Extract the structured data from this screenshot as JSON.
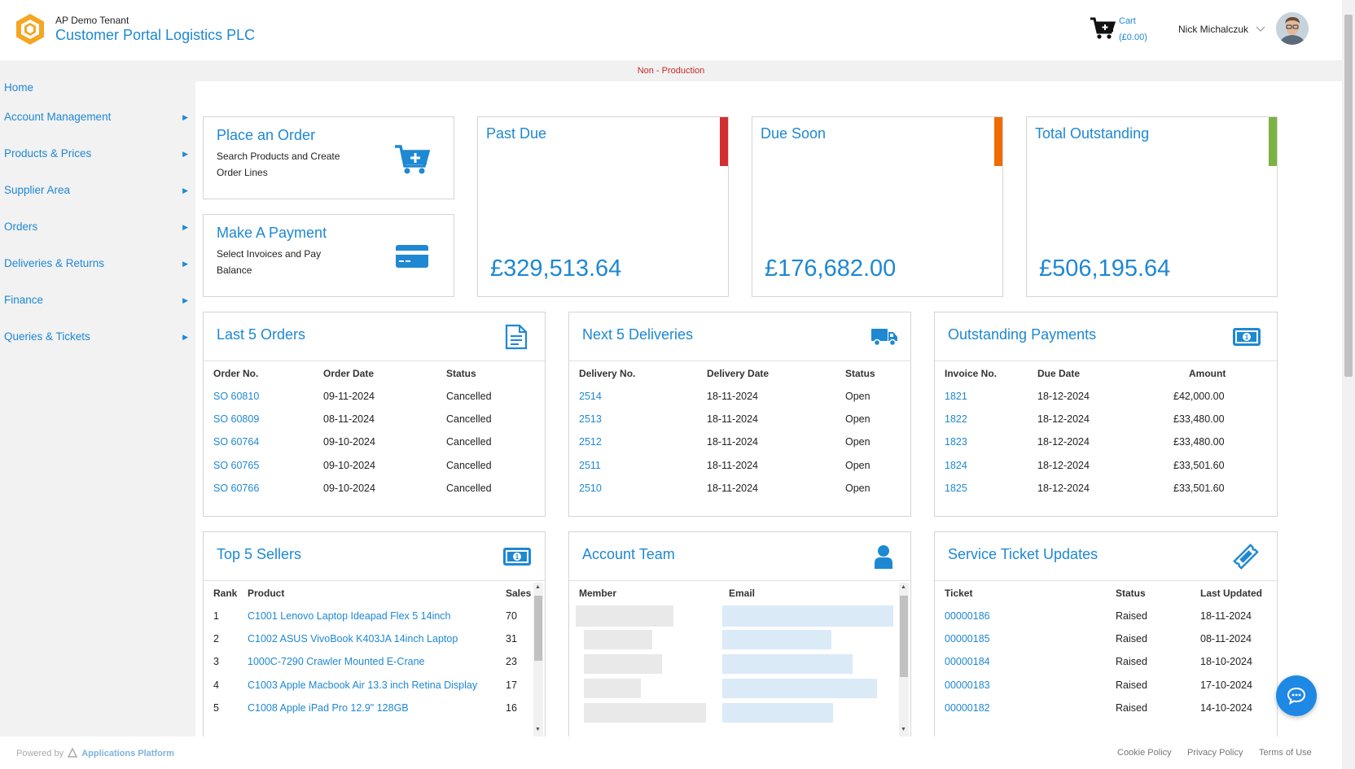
{
  "header": {
    "tenant": "AP Demo Tenant",
    "title": "Customer Portal Logistics PLC",
    "cart_label": "Cart",
    "cart_value": "(£0.00)",
    "user_name": "Nick Michalczuk"
  },
  "env": {
    "label": "Non - Production"
  },
  "sidebar": {
    "items": [
      {
        "label": "Home"
      },
      {
        "label": "Account Management"
      },
      {
        "label": "Products & Prices"
      },
      {
        "label": "Supplier Area"
      },
      {
        "label": "Orders"
      },
      {
        "label": "Deliveries & Returns"
      },
      {
        "label": "Finance"
      },
      {
        "label": "Queries & Tickets"
      }
    ]
  },
  "actions": {
    "order": {
      "title": "Place an Order",
      "subtitle": "Search Products and Create Order Lines"
    },
    "payment": {
      "title": "Make A Payment",
      "subtitle": "Select Invoices and Pay Balance"
    }
  },
  "kpis": {
    "past_due": {
      "title": "Past Due",
      "value": "£329,513.64",
      "color": "#d32f2f"
    },
    "due_soon": {
      "title": "Due Soon",
      "value": "£176,682.00",
      "color": "#ef6c00"
    },
    "total": {
      "title": "Total Outstanding",
      "value": "£506,195.64",
      "color": "#7cb342"
    }
  },
  "orders": {
    "title": "Last 5 Orders",
    "headers": [
      "Order No.",
      "Order Date",
      "Status"
    ],
    "rows": [
      [
        "SO 60810",
        "09-11-2024",
        "Cancelled"
      ],
      [
        "SO 60809",
        "08-11-2024",
        "Cancelled"
      ],
      [
        "SO 60764",
        "09-10-2024",
        "Cancelled"
      ],
      [
        "SO 60765",
        "09-10-2024",
        "Cancelled"
      ],
      [
        "SO 60766",
        "09-10-2024",
        "Cancelled"
      ]
    ]
  },
  "deliveries": {
    "title": "Next 5 Deliveries",
    "headers": [
      "Delivery No.",
      "Delivery Date",
      "Status"
    ],
    "rows": [
      [
        "2514",
        "18-11-2024",
        "Open"
      ],
      [
        "2513",
        "18-11-2024",
        "Open"
      ],
      [
        "2512",
        "18-11-2024",
        "Open"
      ],
      [
        "2511",
        "18-11-2024",
        "Open"
      ],
      [
        "2510",
        "18-11-2024",
        "Open"
      ]
    ]
  },
  "payments": {
    "title": "Outstanding Payments",
    "headers": [
      "Invoice No.",
      "Due Date",
      "Amount"
    ],
    "rows": [
      [
        "1821",
        "18-12-2024",
        "£42,000.00"
      ],
      [
        "1822",
        "18-12-2024",
        "£33,480.00"
      ],
      [
        "1823",
        "18-12-2024",
        "£33,480.00"
      ],
      [
        "1824",
        "18-12-2024",
        "£33,501.60"
      ],
      [
        "1825",
        "18-12-2024",
        "£33,501.60"
      ]
    ]
  },
  "sellers": {
    "title": "Top 5 Sellers",
    "headers": [
      "Rank",
      "Product",
      "Sales"
    ],
    "rows": [
      [
        "1",
        "C1001 Lenovo Laptop Ideapad Flex 5 14inch",
        "70"
      ],
      [
        "2",
        "C1002 ASUS VivoBook K403JA 14inch Laptop",
        "31"
      ],
      [
        "3",
        "1000C-7290 Crawler Mounted E-Crane",
        "23"
      ],
      [
        "4",
        "C1003 Apple Macbook Air 13.3 inch Retina Display",
        "17"
      ],
      [
        "5",
        "C1008 Apple iPad Pro 12.9\" 128GB",
        "16"
      ]
    ]
  },
  "team": {
    "title": "Account Team",
    "headers": [
      "Member",
      "Email"
    ]
  },
  "tickets": {
    "title": "Service Ticket Updates",
    "headers": [
      "Ticket",
      "Status",
      "Last Updated"
    ],
    "rows": [
      [
        "00000186",
        "Raised",
        "18-11-2024"
      ],
      [
        "00000185",
        "Raised",
        "08-11-2024"
      ],
      [
        "00000184",
        "Raised",
        "18-10-2024"
      ],
      [
        "00000183",
        "Raised",
        "17-10-2024"
      ],
      [
        "00000182",
        "Raised",
        "14-10-2024"
      ]
    ]
  },
  "footer": {
    "powered_prefix": "Powered by",
    "powered_brand": "Applications Platform",
    "links": [
      "Cookie Policy",
      "Privacy Policy",
      "Terms of Use"
    ]
  }
}
